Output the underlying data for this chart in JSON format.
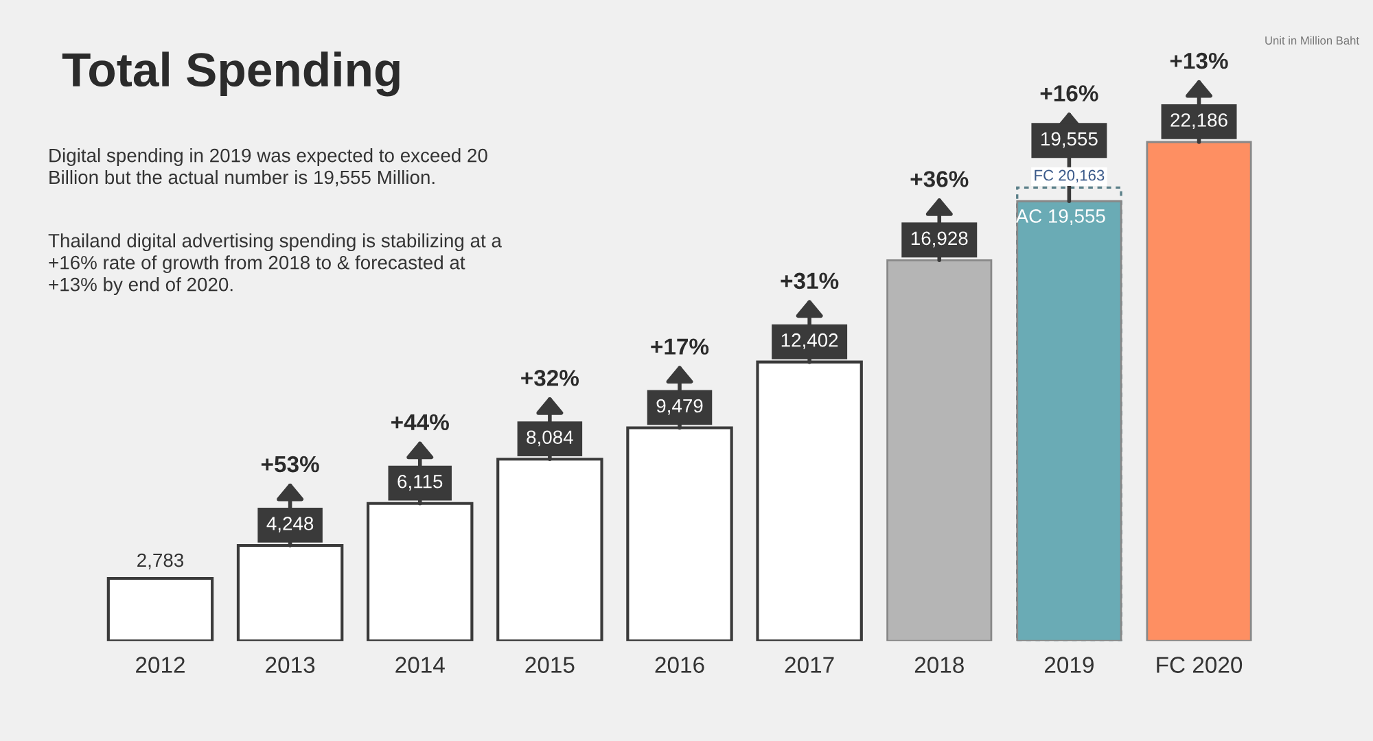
{
  "chart_data": {
    "type": "bar",
    "title": "Total Spending",
    "categories": [
      "2012",
      "2013",
      "2014",
      "2015",
      "2016",
      "2017",
      "2018",
      "2019",
      "FC 2020"
    ],
    "series": [
      {
        "color": "#5a7f88",
        "line_style": "dashed",
        "values": [
          null,
          null,
          null,
          null,
          null,
          null,
          null,
          20163,
          null
        ],
        "value_labels": [
          null,
          null,
          null,
          null,
          null,
          null,
          null,
          "FC 20,163",
          null
        ]
      },
      {
        "colors": [
          "#ffffff",
          "#ffffff",
          "#ffffff",
          "#ffffff",
          "#ffffff",
          "#ffffff",
          "#b5b5b5",
          "#6aabb5",
          "#fe8f62"
        ],
        "values": [
          2783,
          4248,
          6115,
          8084,
          9479,
          12402,
          16928,
          19555,
          22186
        ],
        "value_labels": [
          "2,783",
          "4,248",
          "6,115",
          "8,084",
          "9,479",
          "12,402",
          "16,928",
          "19,555",
          "22,186"
        ]
      }
    ],
    "tick_labels": "x",
    "grid": false,
    "annotations": [
      "Unit in Million Baht",
      "Digital spending in 2019 was expected to exceed 20\nBillion but the actual number is 19,555 Million.",
      "Thailand digital advertising spending is stabilizing at a\n+16% rate of growth from 2018 to & forecasted at\n+13% by end of 2020.",
      {
        "text": "+53%",
        "x": "2013",
        "y": 4248
      },
      {
        "text": "+44%",
        "x": "2014",
        "y": 6115
      },
      {
        "text": "+32%",
        "x": "2015",
        "y": 8084
      },
      {
        "text": "+17%",
        "x": "2016",
        "y": 9479
      },
      {
        "text": "+31%",
        "x": "2017",
        "y": 12402
      },
      {
        "text": "+36%",
        "x": "2018",
        "y": 16928
      },
      {
        "text": "+16%",
        "x": "2019",
        "y": 19555
      },
      {
        "text": "+13%",
        "x": "FC 2020",
        "y": 22186
      },
      {
        "text": "AC 19,555",
        "x": "2019",
        "y": 19555
      }
    ]
  }
}
